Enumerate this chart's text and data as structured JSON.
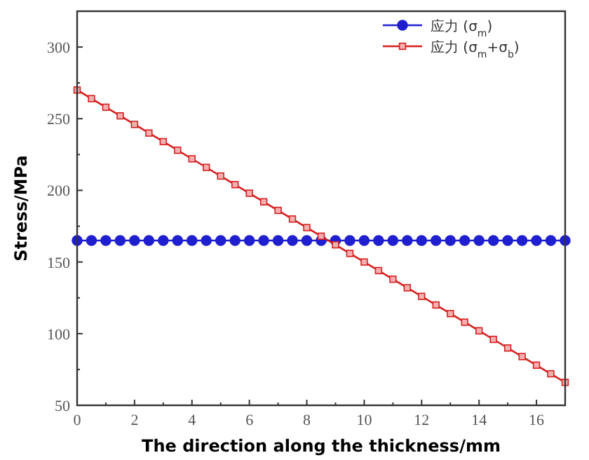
{
  "chart_data": {
    "type": "line",
    "xlabel": "The direction along the thickness/mm",
    "ylabel": "Stress/MPa",
    "xlim": [
      0,
      17
    ],
    "ylim": [
      50,
      325
    ],
    "xticks": [
      0,
      {
        "value": 1,
        "label": null
      },
      2,
      {
        "value": 3,
        "label": null
      },
      4,
      {
        "value": 5,
        "label": null
      },
      6,
      {
        "value": 7,
        "label": null
      },
      8,
      {
        "value": 9,
        "label": null
      },
      10,
      {
        "value": 11,
        "label": null
      },
      12,
      {
        "value": 13,
        "label": null
      },
      14,
      {
        "value": 15,
        "label": null
      },
      16
    ],
    "yticks": [
      50,
      {
        "value": 75,
        "label": null
      },
      100,
      {
        "value": 125,
        "label": null
      },
      150,
      {
        "value": 175,
        "label": null
      },
      200,
      {
        "value": 225,
        "label": null
      },
      250,
      {
        "value": 275,
        "label": null
      },
      300
    ],
    "x": [
      0,
      0.5,
      1,
      1.5,
      2,
      2.5,
      3,
      3.5,
      4,
      4.5,
      5,
      5.5,
      6,
      6.5,
      7,
      7.5,
      8,
      8.5,
      9,
      9.5,
      10,
      10.5,
      11,
      11.5,
      12,
      12.5,
      13,
      13.5,
      14,
      14.5,
      15,
      15.5,
      16,
      16.5,
      17
    ],
    "series": [
      {
        "name": "应力 (σ$_{m}$)",
        "color": "#1f1fd0",
        "marker": "circle",
        "values": [
          165,
          165,
          165,
          165,
          165,
          165,
          165,
          165,
          165,
          165,
          165,
          165,
          165,
          165,
          165,
          165,
          165,
          165,
          165,
          165,
          165,
          165,
          165,
          165,
          165,
          165,
          165,
          165,
          165,
          165,
          165,
          165,
          165,
          165,
          165
        ]
      },
      {
        "name": "应力 (σ$_{m}$+σ$_{b}$)",
        "color": "#d42020",
        "marker": "square",
        "values": [
          270,
          264,
          258,
          252,
          246,
          240,
          234,
          228,
          222,
          216,
          210,
          204,
          198,
          192,
          186,
          180,
          174,
          168,
          162,
          156,
          150,
          144,
          138,
          132,
          126,
          120,
          114,
          108,
          102,
          96,
          90,
          84,
          78,
          72,
          66
        ]
      }
    ],
    "legend": "top right",
    "grid": false
  }
}
